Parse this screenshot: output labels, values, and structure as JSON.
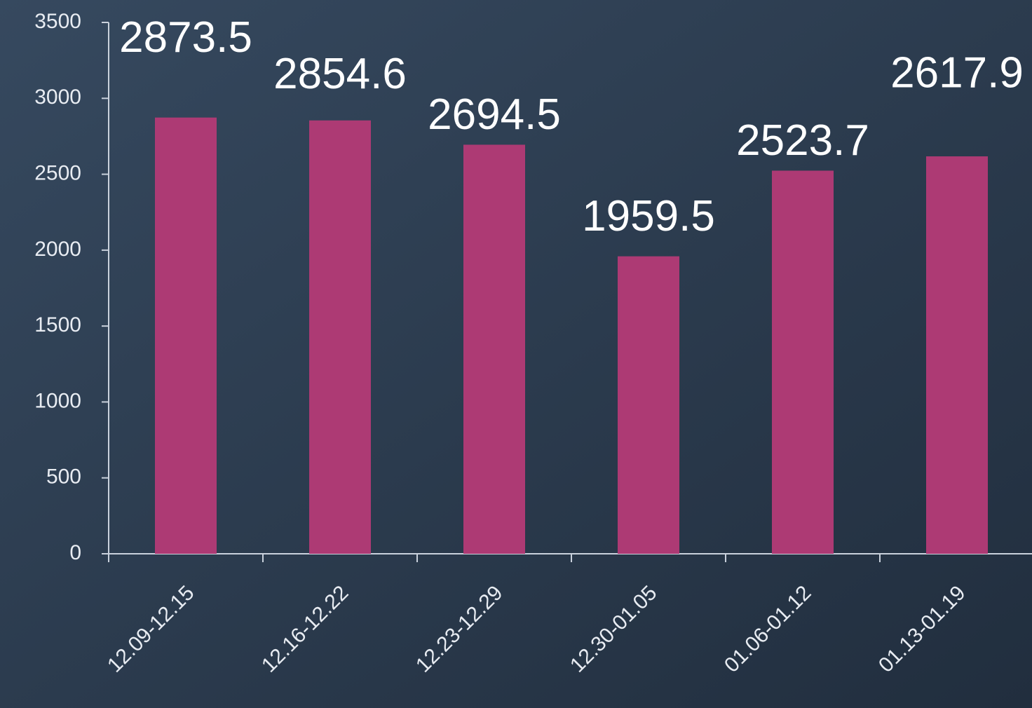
{
  "chart_data": {
    "type": "bar",
    "categories": [
      "12.09-12.15",
      "12.16-12.22",
      "12.23-12.29",
      "12.30-01.05",
      "01.06-01.12",
      "01.13-01.19"
    ],
    "values": [
      2873.5,
      2854.6,
      2694.5,
      1959.5,
      2523.7,
      2617.9
    ],
    "color": "#ad3a74",
    "ylim": [
      0,
      3500
    ],
    "yticks": [
      0,
      500,
      1000,
      1500,
      2000,
      2500,
      3000,
      3500
    ],
    "grid": false
  }
}
